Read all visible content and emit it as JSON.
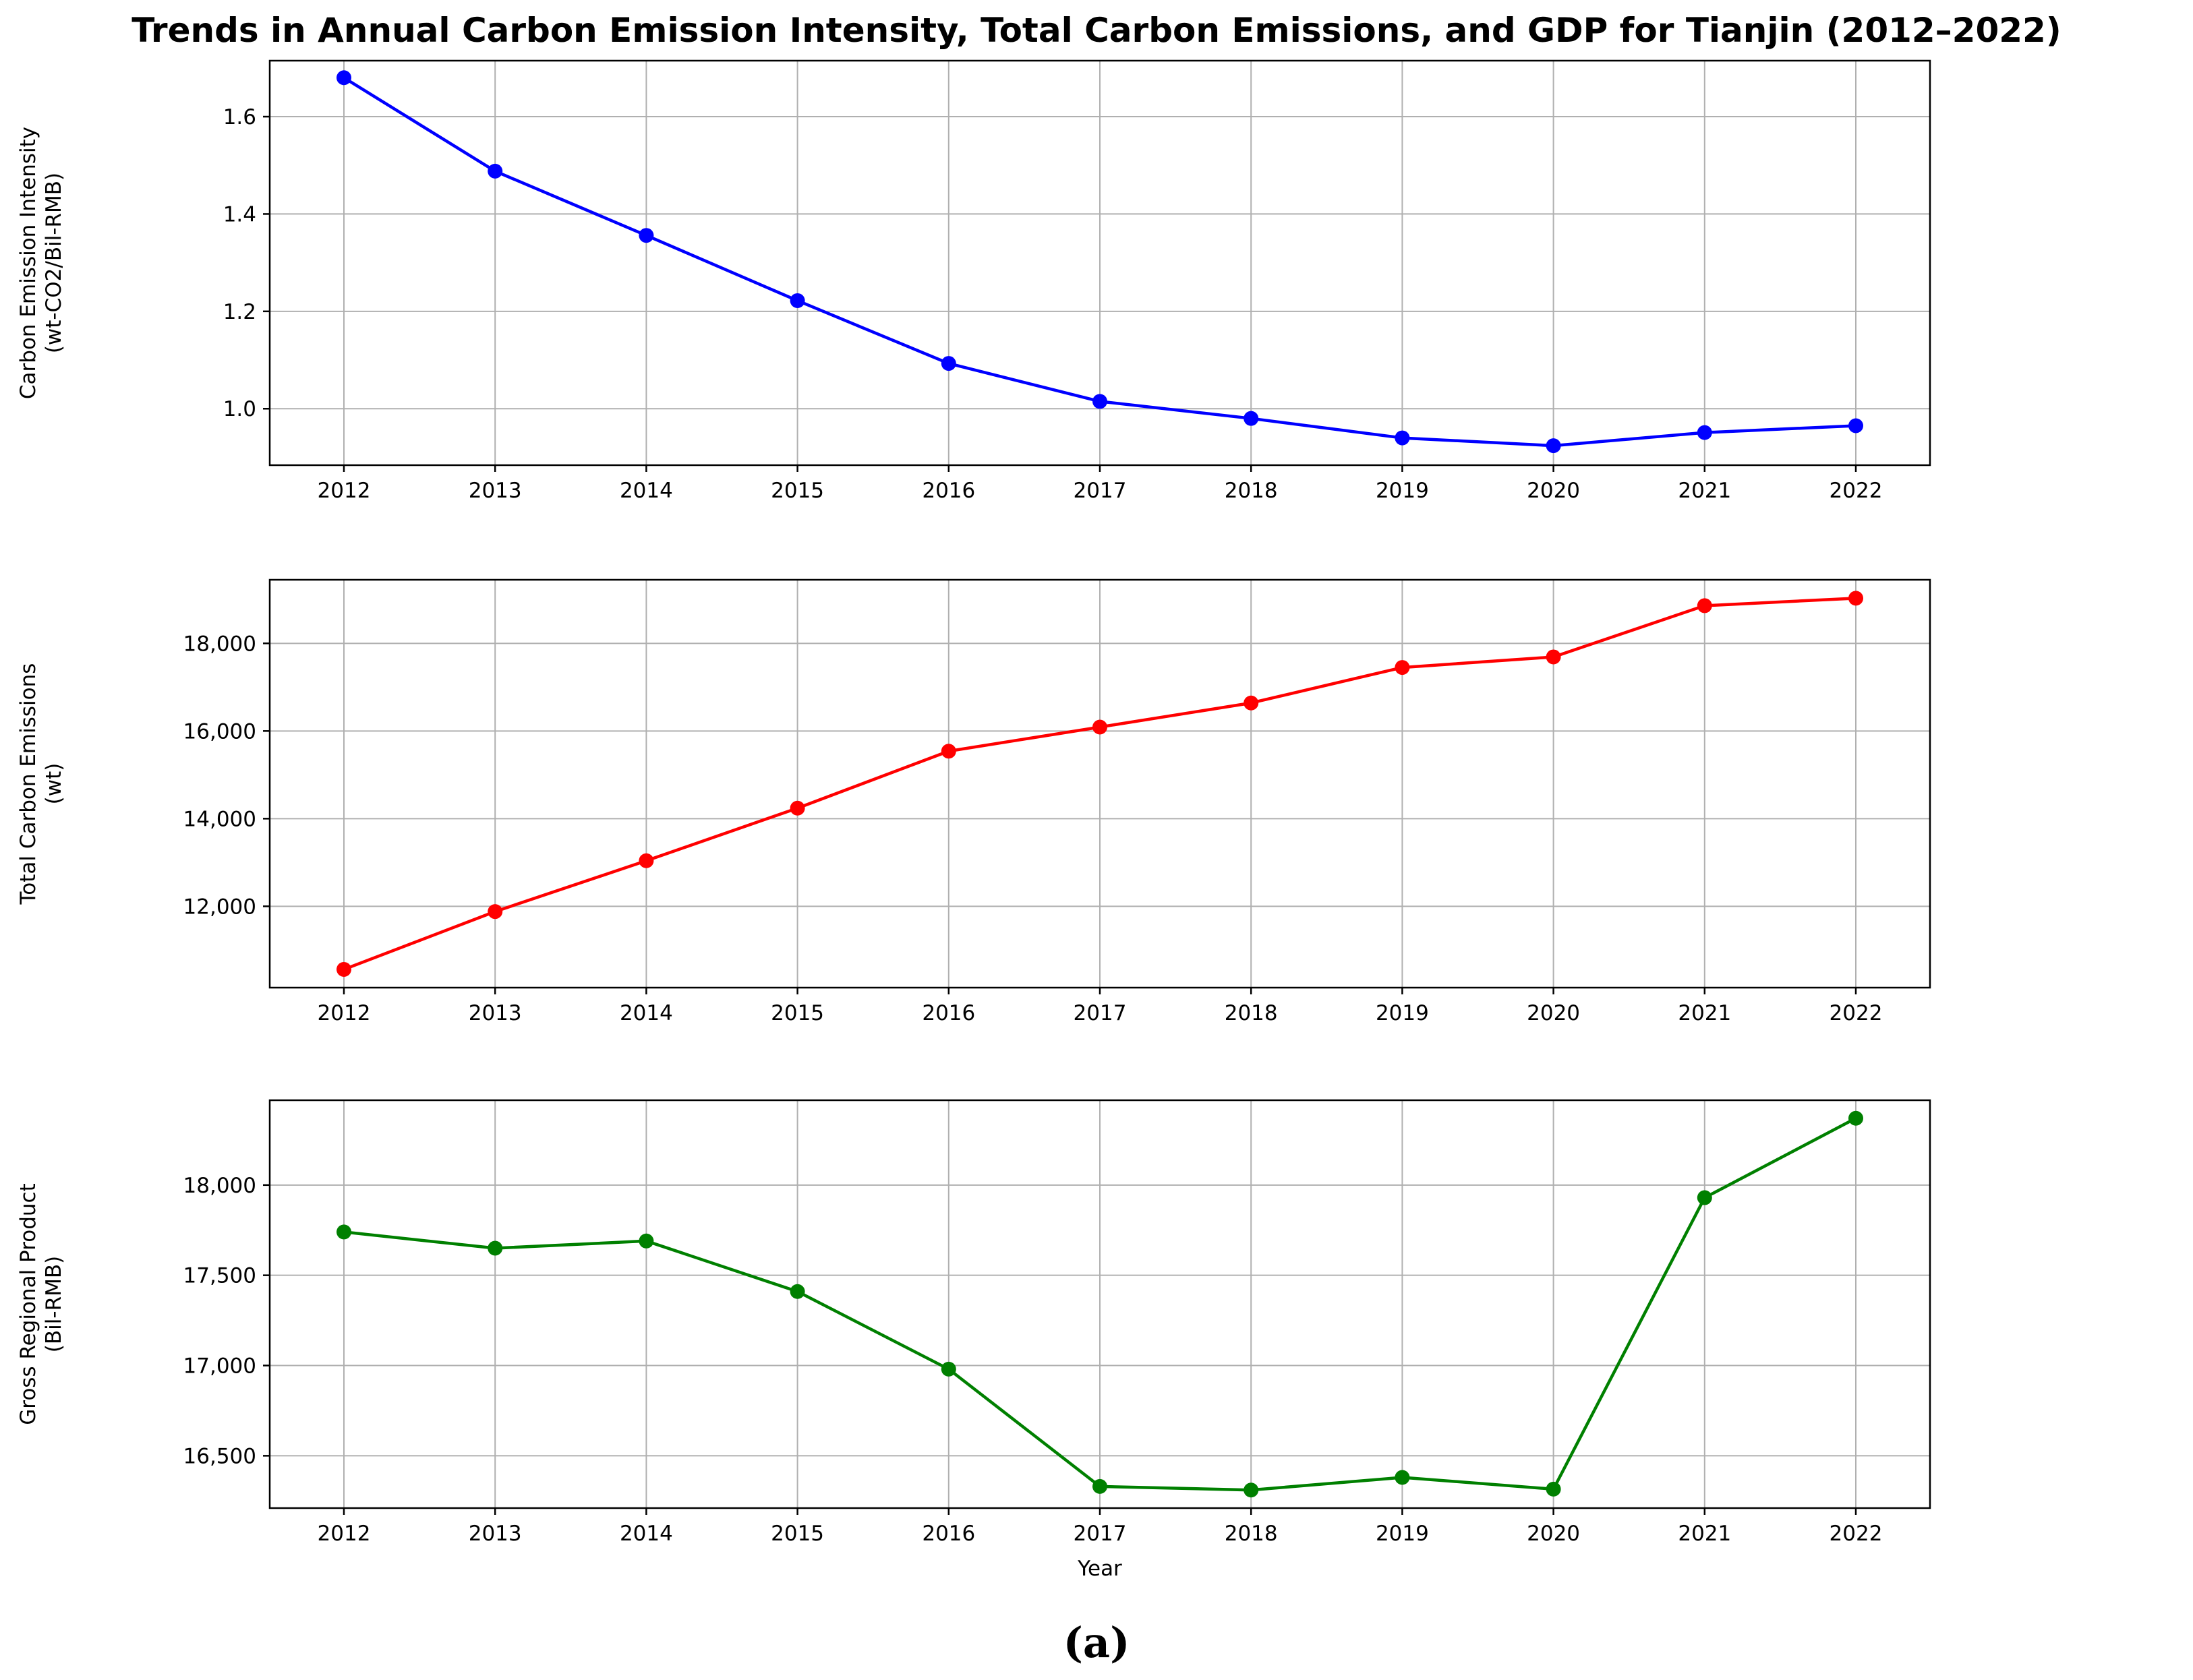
{
  "figure_caption": "(a)",
  "chart_data": [
    {
      "type": "line",
      "title": "Trends in Annual Carbon Emission Intensity, Total Carbon Emissions, and GDP for Tianjin (2012–2022)",
      "ylabel": [
        "Carbon Emission Intensity",
        "(wt-CO2/Bil-RMB)"
      ],
      "xlabel": "",
      "x": [
        "2012",
        "2013",
        "2014",
        "2015",
        "2016",
        "2017",
        "2018",
        "2019",
        "2020",
        "2021",
        "2022"
      ],
      "values": [
        1.68,
        1.488,
        1.356,
        1.222,
        1.093,
        1.015,
        0.98,
        0.94,
        0.924,
        0.951,
        0.965
      ],
      "ylim": [
        0.884,
        1.715
      ],
      "yticks": [
        1.0,
        1.2,
        1.4,
        1.6
      ],
      "ytick_labels": [
        "1.0",
        "1.2",
        "1.4",
        "1.6"
      ],
      "color": "#0000ff",
      "grid": true
    },
    {
      "type": "line",
      "ylabel": [
        "Total Carbon Emissions",
        "(wt)"
      ],
      "xlabel": "",
      "x": [
        "2012",
        "2013",
        "2014",
        "2015",
        "2016",
        "2017",
        "2018",
        "2019",
        "2020",
        "2021",
        "2022"
      ],
      "values": [
        10560,
        11880,
        13040,
        14240,
        15540,
        16090,
        16640,
        17450,
        17690,
        18860,
        19030
      ],
      "ylim": [
        10144,
        19451
      ],
      "yticks": [
        12000,
        14000,
        16000,
        18000
      ],
      "ytick_labels": [
        "12,000",
        "14,000",
        "16,000",
        "18,000"
      ],
      "color": "#ff0000",
      "grid": true
    },
    {
      "type": "line",
      "ylabel": [
        "Gross Regional Product",
        "(Bil-RMB)"
      ],
      "xlabel": "Year",
      "x": [
        "2012",
        "2013",
        "2014",
        "2015",
        "2016",
        "2017",
        "2018",
        "2019",
        "2020",
        "2021",
        "2022"
      ],
      "values": [
        17740,
        17650,
        17690,
        17410,
        16980,
        16330,
        16310,
        16380,
        16315,
        17930,
        18370
      ],
      "ylim": [
        16210,
        18470
      ],
      "yticks": [
        16500,
        17000,
        17500,
        18000
      ],
      "ytick_labels": [
        "16,500",
        "17,000",
        "17,500",
        "18,000"
      ],
      "color": "#008000",
      "grid": true
    }
  ]
}
